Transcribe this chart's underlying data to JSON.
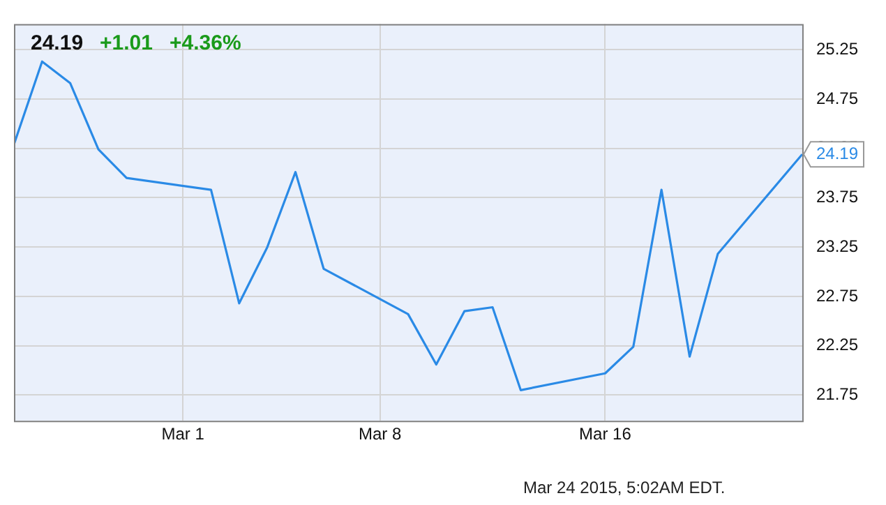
{
  "chart_data": {
    "type": "line",
    "annotations": [
      "24.19",
      "+1.01",
      "+4.36%",
      "Mar 24 2015, 5:02AM EDT.",
      {
        "text": "24.19",
        "x": "2015-03-23",
        "y": 24.19
      }
    ],
    "x": [
      "2015-02-23",
      "2015-02-24",
      "2015-02-25",
      "2015-02-26",
      "2015-02-27",
      "2015-03-02",
      "2015-03-03",
      "2015-03-04",
      "2015-03-05",
      "2015-03-06",
      "2015-03-09",
      "2015-03-10",
      "2015-03-11",
      "2015-03-12",
      "2015-03-13",
      "2015-03-16",
      "2015-03-17",
      "2015-03-18",
      "2015-03-19",
      "2015-03-20",
      "2015-03-23"
    ],
    "series": [
      {
        "color": "#2a8ae6",
        "values": [
          24.29,
          25.13,
          24.91,
          24.24,
          23.95,
          23.83,
          22.68,
          23.25,
          24.01,
          23.03,
          22.57,
          22.06,
          22.6,
          22.64,
          21.8,
          21.97,
          22.24,
          23.83,
          22.14,
          23.18,
          24.19
        ]
      }
    ],
    "xlim": [
      "2015-02-23",
      "2015-03-23"
    ],
    "xticks": [
      {
        "value": "2015-03-01",
        "label": "Mar 1"
      },
      {
        "value": "2015-03-08",
        "label": "Mar 8"
      },
      {
        "value": "2015-03-16",
        "label": "Mar 16"
      }
    ],
    "ylim": [
      21.49,
      25.51
    ],
    "yticks": [
      21.75,
      22.25,
      22.75,
      23.25,
      23.75,
      24.25,
      24.75,
      25.25
    ],
    "grid": true,
    "marker": "none",
    "line_style": "solid",
    "legend": false
  }
}
